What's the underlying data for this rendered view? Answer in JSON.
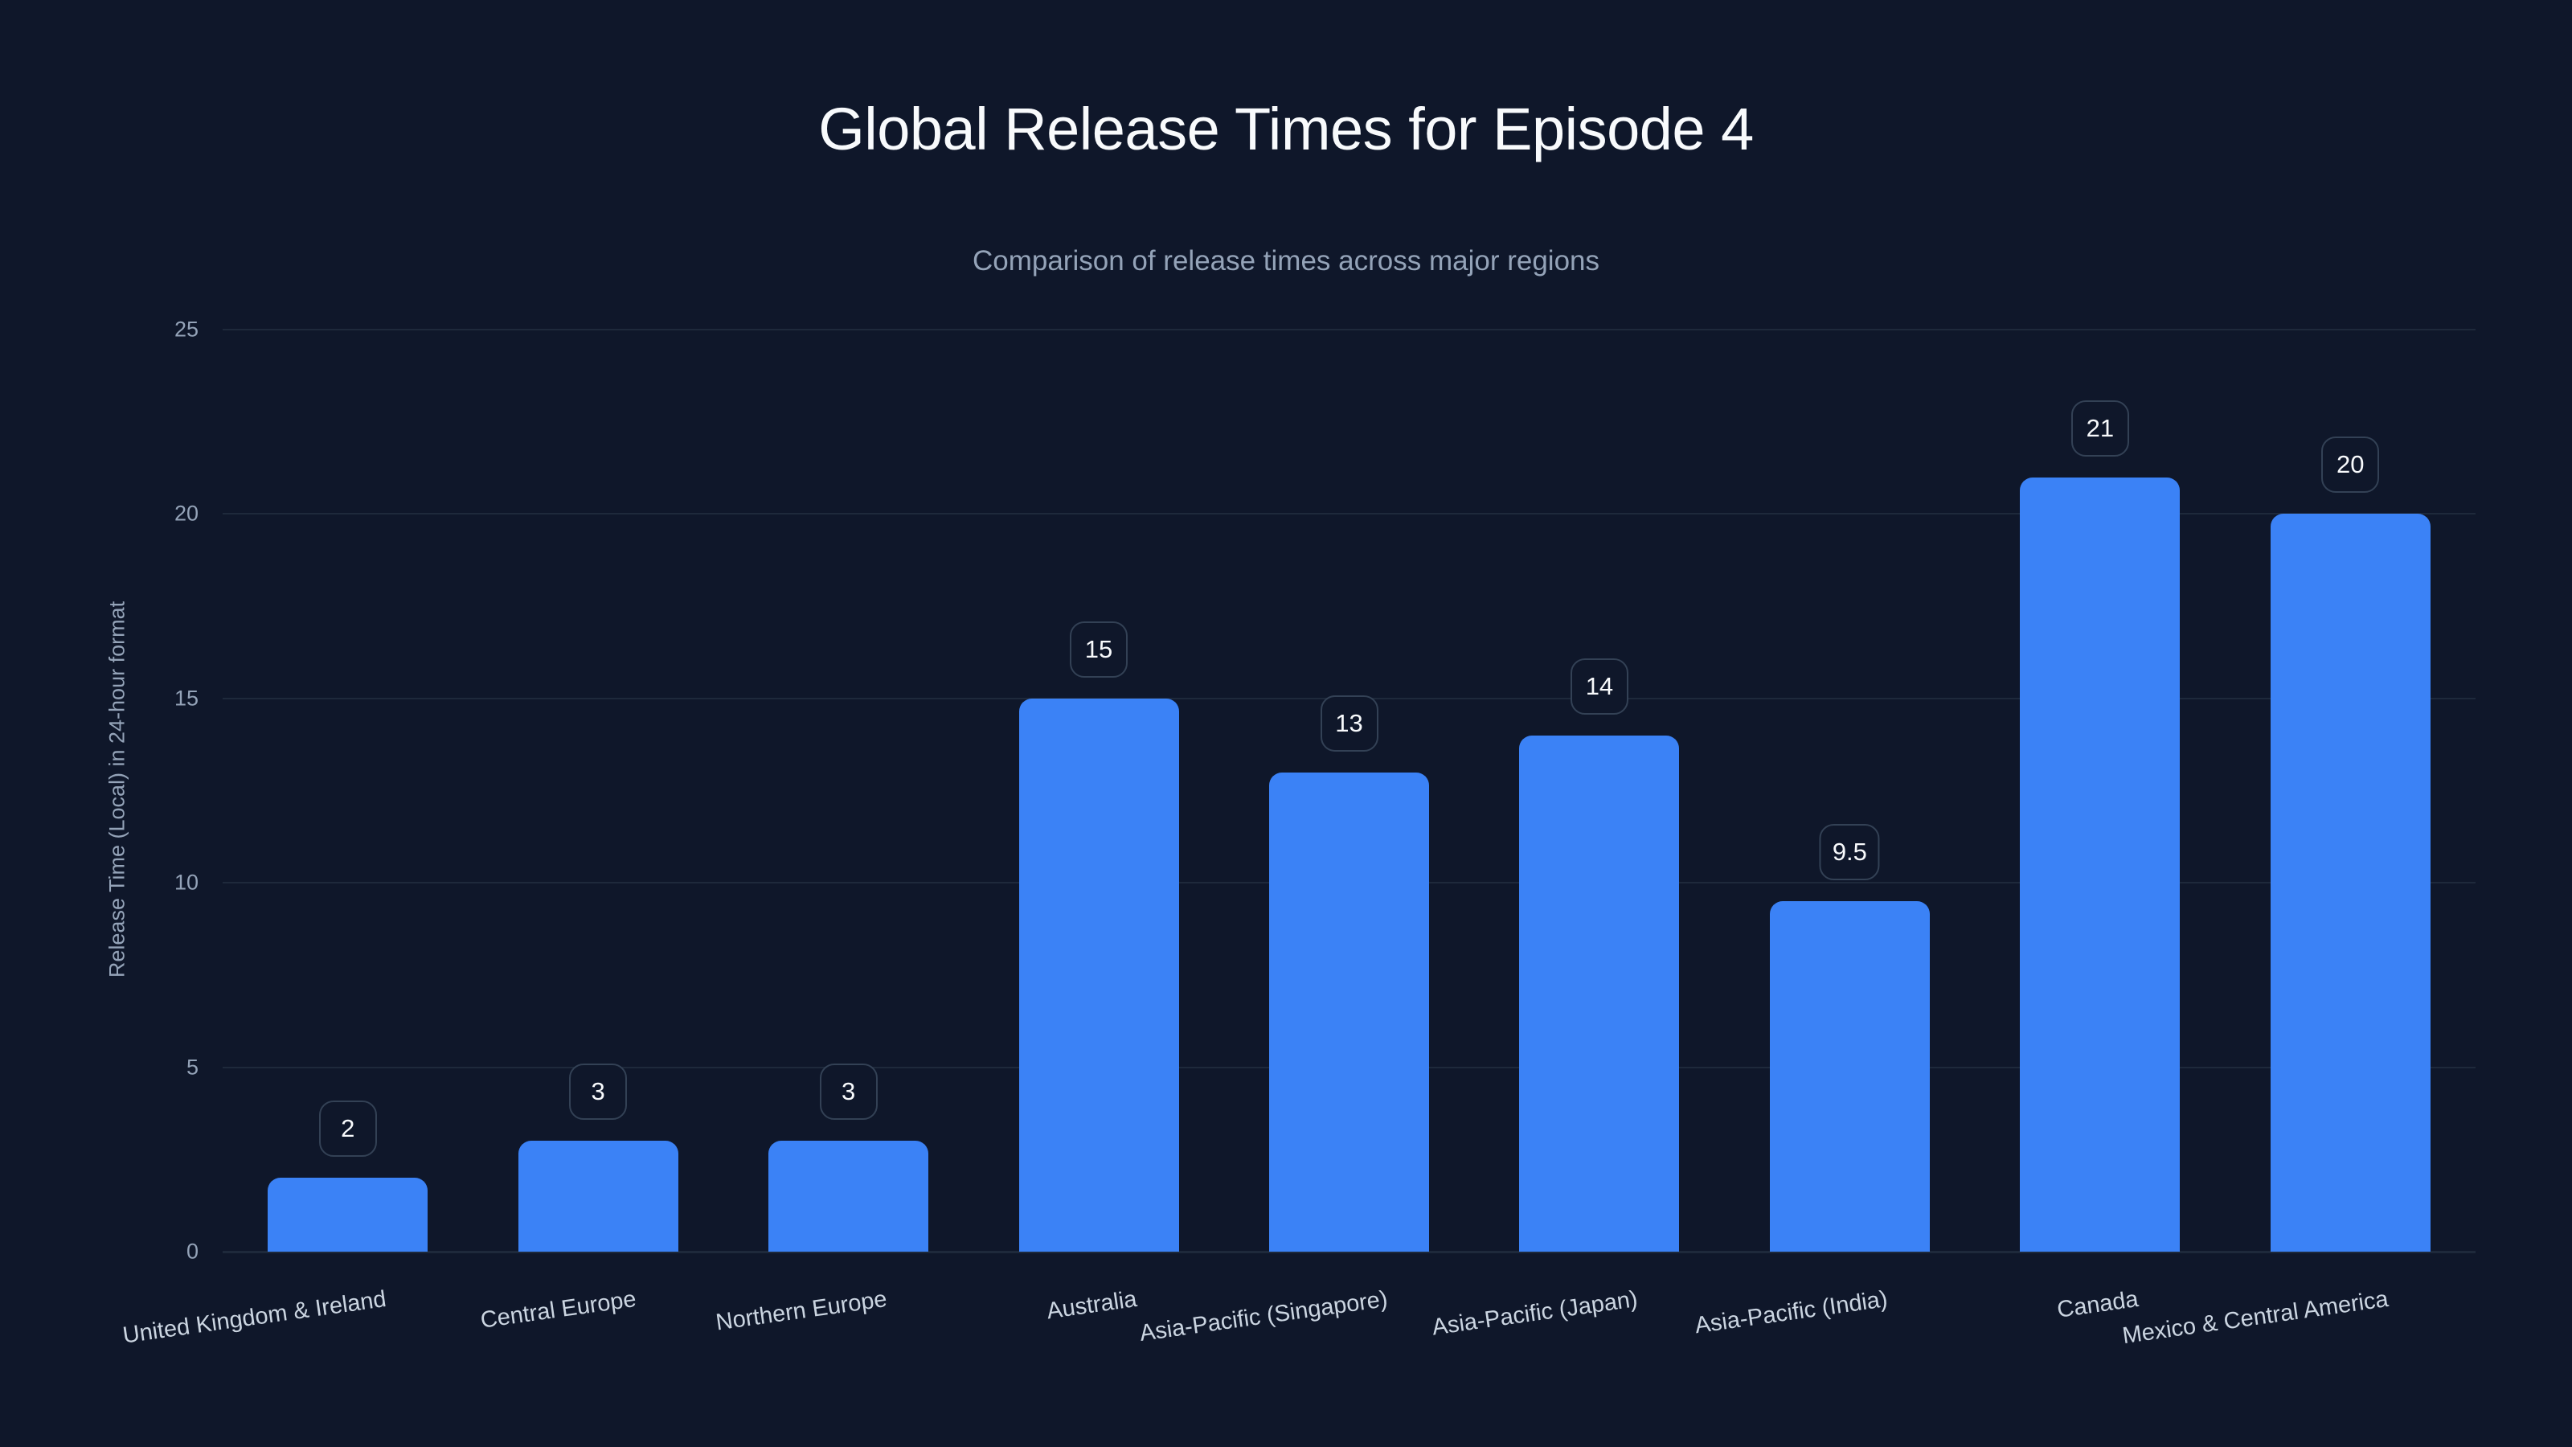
{
  "chart": {
    "title": "Global Release Times for Episode 4",
    "subtitle": "Comparison of release times across major regions",
    "y_axis_title": "Release Time (Local) in 24-hour format",
    "colors": {
      "background": "#0f172a",
      "bar": "#3b82f6",
      "grid": "#1e293b",
      "badge_border": "#334155",
      "title": "#f8fafc",
      "subtitle": "#94a3b8",
      "tick": "#94a3b8",
      "category_label": "#cbd5e1"
    }
  },
  "chart_data": {
    "type": "bar",
    "title": "Global Release Times for Episode 4",
    "subtitle": "Comparison of release times across major regions",
    "xlabel": "",
    "ylabel": "Release Time (Local) in 24-hour format",
    "ylim": [
      0,
      25
    ],
    "yticks": [
      0,
      5,
      10,
      15,
      20,
      25
    ],
    "grid": true,
    "legend": null,
    "data_labels": true,
    "categories": [
      "United Kingdom & Ireland",
      "Central Europe",
      "Northern Europe",
      "Australia",
      "Asia-Pacific (Singapore)",
      "Asia-Pacific (Japan)",
      "Asia-Pacific (India)",
      "Canada",
      "Mexico & Central America"
    ],
    "values": [
      2,
      3,
      3,
      15,
      13,
      14,
      9.5,
      21,
      20
    ],
    "value_labels": [
      "2",
      "3",
      "3",
      "15",
      "13",
      "14",
      "9.5",
      "21",
      "20"
    ]
  }
}
